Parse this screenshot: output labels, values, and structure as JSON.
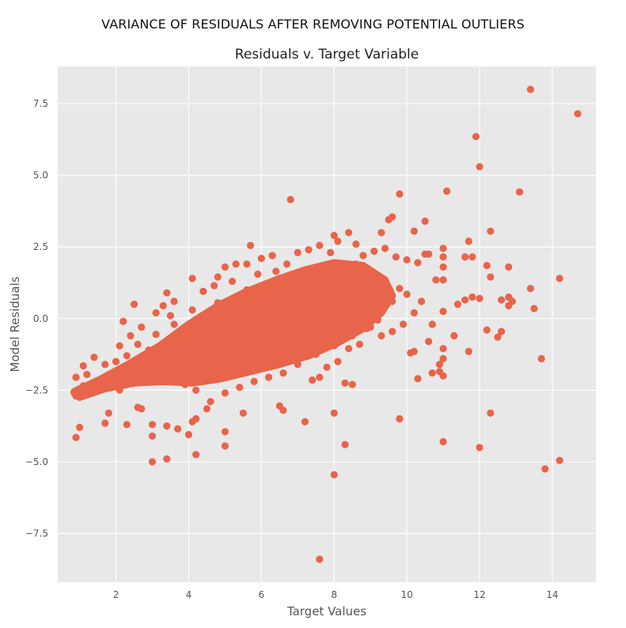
{
  "figure": {
    "suptitle": "VARIANCE OF RESIDUALS AFTER REMOVING POTENTIAL OUTLIERS"
  },
  "chart_data": {
    "type": "scatter",
    "title": "Residuals v. Target Variable",
    "xlabel": "Target Values",
    "ylabel": "Model Residuals",
    "xlim": [
      0.4,
      15.2
    ],
    "ylim": [
      -9.2,
      8.8
    ],
    "xticks": [
      2,
      4,
      6,
      8,
      10,
      12,
      14
    ],
    "yticks": [
      -7.5,
      -5.0,
      -2.5,
      0.0,
      2.5,
      5.0,
      7.5
    ],
    "xtick_labels": [
      "2",
      "4",
      "6",
      "8",
      "10",
      "12",
      "14"
    ],
    "ytick_labels": [
      "−7.5",
      "−5.0",
      "−2.5",
      "0.0",
      "2.5",
      "5.0",
      "7.5"
    ],
    "grid": true,
    "style": {
      "marker_color": "#e8644a",
      "plot_background": "#e8e8e8",
      "grid_color": "#ffffff"
    },
    "series": [
      {
        "points": [
          [
            13.4,
            8.0
          ],
          [
            14.7,
            7.15
          ],
          [
            11.9,
            6.35
          ],
          [
            12.0,
            5.3
          ],
          [
            11.1,
            4.45
          ],
          [
            13.1,
            4.42
          ],
          [
            9.8,
            4.35
          ],
          [
            6.8,
            4.15
          ],
          [
            9.6,
            3.55
          ],
          [
            9.5,
            3.45
          ],
          [
            10.5,
            3.4
          ],
          [
            12.3,
            3.05
          ],
          [
            10.2,
            3.05
          ],
          [
            8.4,
            3.0
          ],
          [
            9.3,
            3.0
          ],
          [
            8.0,
            2.9
          ],
          [
            11.7,
            2.7
          ],
          [
            5.7,
            2.55
          ],
          [
            11.0,
            2.45
          ],
          [
            10.5,
            2.25
          ],
          [
            10.6,
            2.25
          ],
          [
            11.8,
            2.15
          ],
          [
            11.6,
            2.15
          ],
          [
            11.0,
            2.15
          ],
          [
            12.2,
            1.85
          ],
          [
            12.8,
            1.8
          ],
          [
            11.0,
            1.8
          ],
          [
            13.4,
            1.05
          ],
          [
            14.2,
            1.4
          ],
          [
            12.3,
            1.45
          ],
          [
            10.8,
            1.35
          ],
          [
            11.0,
            1.35
          ],
          [
            12.8,
            0.75
          ],
          [
            11.8,
            0.75
          ],
          [
            12.0,
            0.7
          ],
          [
            11.6,
            0.65
          ],
          [
            12.6,
            0.65
          ],
          [
            12.9,
            0.6
          ],
          [
            11.4,
            0.5
          ],
          [
            12.8,
            0.45
          ],
          [
            13.5,
            0.35
          ],
          [
            11.0,
            0.25
          ],
          [
            11.3,
            -0.6
          ],
          [
            10.7,
            -0.2
          ],
          [
            12.2,
            -0.4
          ],
          [
            12.6,
            -0.45
          ],
          [
            12.5,
            -0.65
          ],
          [
            10.6,
            -0.8
          ],
          [
            11.0,
            -1.05
          ],
          [
            11.7,
            -1.15
          ],
          [
            10.2,
            -1.15
          ],
          [
            13.7,
            -1.4
          ],
          [
            10.1,
            -1.2
          ],
          [
            11.0,
            -1.4
          ],
          [
            10.9,
            -1.6
          ],
          [
            10.9,
            -1.85
          ],
          [
            10.7,
            -1.9
          ],
          [
            11.0,
            -2.0
          ],
          [
            10.3,
            -2.1
          ],
          [
            12.3,
            -3.3
          ],
          [
            9.8,
            -3.5
          ],
          [
            11.0,
            -4.3
          ],
          [
            12.0,
            -4.5
          ],
          [
            14.2,
            -4.95
          ],
          [
            13.8,
            -5.25
          ],
          [
            8.3,
            -4.4
          ],
          [
            8.0,
            -5.45
          ],
          [
            7.6,
            -8.4
          ],
          [
            8.0,
            -3.3
          ],
          [
            7.2,
            -3.6
          ],
          [
            8.3,
            -2.25
          ],
          [
            8.5,
            -2.3
          ],
          [
            7.6,
            -2.05
          ],
          [
            6.5,
            -3.05
          ],
          [
            6.6,
            -3.2
          ],
          [
            5.5,
            -3.3
          ],
          [
            5.0,
            -3.95
          ],
          [
            5.0,
            -4.45
          ],
          [
            4.2,
            -4.75
          ],
          [
            3.4,
            -4.9
          ],
          [
            3.0,
            -5.0
          ],
          [
            3.0,
            -4.1
          ],
          [
            3.4,
            -3.75
          ],
          [
            4.0,
            -4.05
          ],
          [
            4.1,
            -3.6
          ],
          [
            4.2,
            -3.5
          ],
          [
            3.7,
            -3.85
          ],
          [
            3.0,
            -3.7
          ],
          [
            2.7,
            -3.15
          ],
          [
            2.6,
            -3.1
          ],
          [
            2.3,
            -3.7
          ],
          [
            1.7,
            -3.65
          ],
          [
            1.8,
            -3.3
          ],
          [
            1.0,
            -3.8
          ],
          [
            0.9,
            -4.15
          ],
          [
            4.5,
            -3.15
          ],
          [
            0.85,
            -2.6
          ],
          [
            0.9,
            -2.7
          ],
          [
            0.95,
            -2.5
          ],
          [
            1.0,
            -2.45
          ],
          [
            1.1,
            -2.35
          ],
          [
            1.3,
            -2.3
          ],
          [
            1.5,
            -2.2
          ],
          [
            0.9,
            -2.05
          ],
          [
            1.2,
            -1.95
          ],
          [
            1.1,
            -1.65
          ],
          [
            1.4,
            -1.35
          ],
          [
            1.7,
            -1.6
          ],
          [
            2.0,
            -1.5
          ],
          [
            1.9,
            -1.95
          ],
          [
            2.1,
            -2.5
          ],
          [
            2.1,
            -0.95
          ],
          [
            2.2,
            -0.1
          ],
          [
            2.5,
            0.5
          ],
          [
            3.6,
            0.6
          ],
          [
            3.4,
            0.9
          ],
          [
            4.1,
            1.4
          ],
          [
            4.8,
            1.45
          ],
          [
            5.0,
            1.8
          ],
          [
            5.3,
            1.9
          ],
          [
            5.6,
            1.9
          ],
          [
            6.0,
            2.1
          ],
          [
            6.3,
            2.2
          ],
          [
            6.7,
            1.9
          ],
          [
            7.0,
            2.3
          ],
          [
            7.3,
            2.4
          ],
          [
            7.6,
            2.55
          ],
          [
            7.9,
            2.3
          ],
          [
            8.1,
            2.7
          ],
          [
            8.6,
            2.6
          ],
          [
            8.8,
            2.2
          ],
          [
            9.1,
            2.35
          ],
          [
            9.4,
            2.45
          ],
          [
            9.7,
            2.15
          ],
          [
            10.0,
            2.05
          ],
          [
            10.3,
            1.95
          ],
          [
            9.2,
            1.45
          ],
          [
            9.8,
            1.05
          ],
          [
            10.0,
            0.85
          ],
          [
            10.4,
            0.6
          ],
          [
            10.2,
            0.2
          ],
          [
            9.9,
            -0.2
          ],
          [
            9.6,
            -0.45
          ],
          [
            9.3,
            -0.6
          ],
          [
            9.0,
            -0.3
          ],
          [
            8.7,
            -0.9
          ],
          [
            8.4,
            -1.05
          ],
          [
            8.1,
            -1.5
          ],
          [
            7.8,
            -1.7
          ],
          [
            7.4,
            -2.15
          ],
          [
            7.0,
            -1.6
          ],
          [
            6.6,
            -1.9
          ],
          [
            6.2,
            -2.05
          ],
          [
            5.8,
            -2.2
          ],
          [
            5.4,
            -2.4
          ],
          [
            5.0,
            -2.6
          ],
          [
            4.6,
            -2.9
          ],
          [
            4.2,
            -2.5
          ],
          [
            3.9,
            -2.3
          ],
          [
            3.6,
            -2.05
          ],
          [
            3.2,
            -2.0
          ],
          [
            2.9,
            -1.7
          ],
          [
            2.6,
            -1.85
          ],
          [
            2.3,
            -1.3
          ],
          [
            2.4,
            -0.6
          ],
          [
            2.7,
            -0.3
          ],
          [
            3.1,
            0.2
          ],
          [
            3.3,
            0.45
          ],
          [
            4.4,
            0.95
          ],
          [
            4.7,
            1.15
          ],
          [
            5.2,
            1.3
          ],
          [
            5.9,
            1.55
          ],
          [
            6.4,
            1.65
          ],
          [
            7.2,
            1.7
          ],
          [
            7.7,
            1.75
          ],
          [
            8.3,
            1.85
          ],
          [
            8.9,
            1.6
          ],
          [
            9.4,
            1.2
          ],
          [
            9.6,
            0.6
          ],
          [
            9.2,
            -0.05
          ],
          [
            8.9,
            -0.35
          ],
          [
            8.5,
            -0.6
          ],
          [
            8.0,
            -0.95
          ],
          [
            7.5,
            -1.25
          ],
          [
            6.9,
            -1.3
          ],
          [
            6.3,
            -1.55
          ],
          [
            5.7,
            -1.75
          ],
          [
            5.1,
            -2.0
          ],
          [
            4.5,
            -2.15
          ],
          [
            3.8,
            -1.65
          ],
          [
            3.4,
            -1.4
          ],
          [
            2.9,
            -1.1
          ],
          [
            2.6,
            -0.9
          ],
          [
            3.1,
            -0.55
          ],
          [
            3.6,
            -0.2
          ],
          [
            4.1,
            0.3
          ],
          [
            4.8,
            0.55
          ],
          [
            5.4,
            0.8
          ],
          [
            6.1,
            1.0
          ],
          [
            6.8,
            1.2
          ],
          [
            7.4,
            1.35
          ],
          [
            8.1,
            1.3
          ],
          [
            8.6,
            1.0
          ],
          [
            8.8,
            0.45
          ],
          [
            8.2,
            0.1
          ],
          [
            7.6,
            -0.3
          ],
          [
            7.0,
            -0.55
          ],
          [
            6.4,
            -0.75
          ],
          [
            5.8,
            -0.95
          ],
          [
            5.1,
            -1.2
          ],
          [
            4.4,
            -1.35
          ],
          [
            3.9,
            -0.9
          ],
          [
            4.3,
            -0.4
          ],
          [
            4.9,
            -0.1
          ],
          [
            5.5,
            0.2
          ],
          [
            6.2,
            0.45
          ],
          [
            6.9,
            0.65
          ],
          [
            7.6,
            0.8
          ],
          [
            8.3,
            0.75
          ],
          [
            7.9,
            0.25
          ],
          [
            7.2,
            -0.05
          ],
          [
            6.6,
            -0.25
          ],
          [
            6.0,
            -0.4
          ],
          [
            5.3,
            -0.55
          ],
          [
            4.7,
            -0.75
          ],
          [
            5.0,
            0.5
          ],
          [
            5.6,
            1.0
          ],
          [
            6.5,
            1.4
          ],
          [
            7.8,
            1.2
          ],
          [
            8.6,
            1.9
          ],
          [
            9.5,
            0.9
          ],
          [
            6.2,
            -1.1
          ],
          [
            4.0,
            -0.9
          ],
          [
            3.5,
            0.1
          ]
        ]
      }
    ]
  }
}
